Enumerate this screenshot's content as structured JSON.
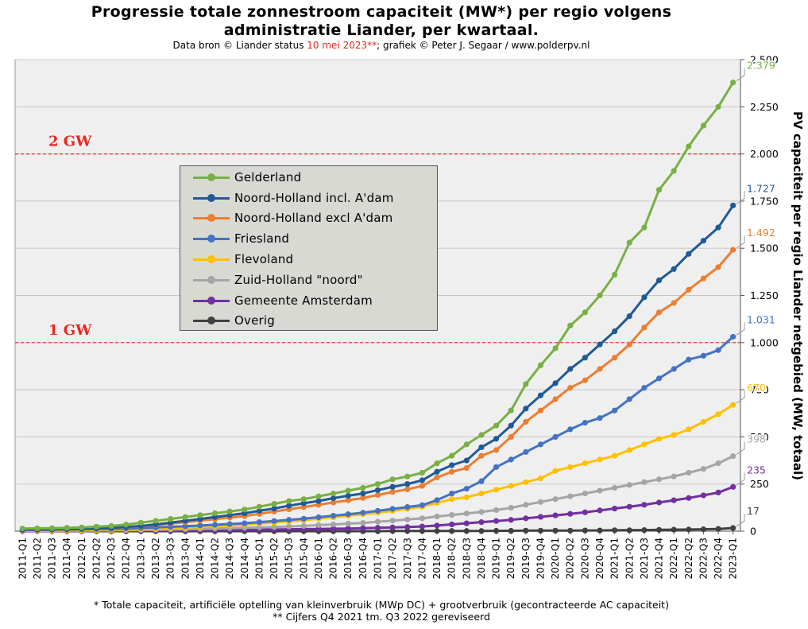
{
  "header": {
    "title_line1": "Progressie totale zonnestroom capaciteit (MW*) per regio volgens",
    "title_line2": "administratie  Liander, per kwartaal.",
    "subtitle_pre": "Data bron © Liander status ",
    "subtitle_date": "10 mei 2023**",
    "subtitle_post": "; grafiek © Peter J. Segaar / www.polderpv.nl"
  },
  "footer": {
    "note1": "* Totale capaciteit, artificiële optelling van kleinverbruik (MWp DC) + grootverbruik (gecontracteerde AC capaciteit)",
    "note2": "** Cijfers Q4 2021 tm. Q3 2022 gereviseerd"
  },
  "chart_data": {
    "type": "line",
    "ylabel": "PV capaciteit per regio Liander netgebied (MW, totaal)",
    "ylim": [
      0,
      2500
    ],
    "yticks": [
      0,
      250,
      500,
      750,
      1000,
      1250,
      1500,
      1750,
      2000,
      2250,
      2500
    ],
    "ytick_labels": [
      "0",
      "250",
      "500",
      "750",
      "1.000",
      "1.250",
      "1.500",
      "1.750",
      "2.000",
      "2.250",
      "2.500"
    ],
    "reference_lines": [
      {
        "label": "2 GW",
        "value": 2000,
        "color": "#e8261f"
      },
      {
        "label": "1 GW",
        "value": 1000,
        "color": "#e8261f"
      }
    ],
    "grid": true,
    "legend_position": "upper-left",
    "categories": [
      "2011-Q1",
      "2011-Q2",
      "2011-Q3",
      "2011-Q4",
      "2012-Q1",
      "2012-Q2",
      "2012-Q3",
      "2012-Q4",
      "2013-Q1",
      "2013-Q2",
      "2013-Q3",
      "2013-Q4",
      "2014-Q1",
      "2014-Q2",
      "2014-Q3",
      "2014-Q4",
      "2015-Q1",
      "2015-Q2",
      "2015-Q3",
      "2015-Q4",
      "2016-Q1",
      "2016-Q2",
      "2016-Q3",
      "2016-Q4",
      "2017-Q1",
      "2017-Q2",
      "2017-Q3",
      "2017-Q4",
      "2018-Q1",
      "2018-Q2",
      "2018-Q3",
      "2018-Q4",
      "2019-Q1",
      "2019-Q2",
      "2019-Q3",
      "2019-Q4",
      "2020-Q1",
      "2020-Q2",
      "2020-Q3",
      "2020-Q4",
      "2021-Q1",
      "2021-Q2",
      "2021-Q3",
      "2021-Q4",
      "2022-Q1",
      "2022-Q2",
      "2022-Q3",
      "2022-Q4",
      "2023-Q1"
    ],
    "series": [
      {
        "name": "Gelderland",
        "color": "#78b043",
        "end_label": "2.379",
        "values": [
          14,
          15,
          16,
          18,
          20,
          24,
          28,
          35,
          45,
          55,
          65,
          75,
          85,
          95,
          105,
          115,
          130,
          145,
          160,
          170,
          185,
          200,
          215,
          230,
          250,
          275,
          290,
          310,
          360,
          400,
          460,
          510,
          560,
          640,
          780,
          880,
          970,
          1090,
          1160,
          1250,
          1360,
          1530,
          1610,
          1810,
          1910,
          2040,
          2150,
          2250,
          2379
        ]
      },
      {
        "name": "Noord-Holland incl. A'dam",
        "color": "#1f5a96",
        "end_label": "1.727",
        "values": [
          7,
          8,
          9,
          10,
          12,
          15,
          18,
          22,
          28,
          36,
          45,
          55,
          65,
          75,
          85,
          95,
          108,
          120,
          135,
          148,
          160,
          175,
          188,
          200,
          218,
          235,
          250,
          270,
          315,
          350,
          375,
          445,
          490,
          560,
          650,
          720,
          785,
          860,
          920,
          990,
          1060,
          1140,
          1240,
          1330,
          1390,
          1470,
          1540,
          1610,
          1727
        ]
      },
      {
        "name": "Noord-Holland excl A'dam",
        "color": "#ed7d31",
        "end_label": "1.492",
        "values": [
          6,
          7,
          8,
          9,
          11,
          14,
          17,
          20,
          26,
          33,
          40,
          48,
          56,
          64,
          72,
          80,
          92,
          104,
          116,
          128,
          140,
          152,
          164,
          176,
          192,
          208,
          222,
          240,
          285,
          315,
          335,
          400,
          430,
          500,
          580,
          640,
          700,
          760,
          800,
          860,
          920,
          990,
          1080,
          1160,
          1210,
          1280,
          1340,
          1400,
          1492
        ]
      },
      {
        "name": "Friesland",
        "color": "#4472c4",
        "end_label": "1.031",
        "values": [
          6,
          7,
          8,
          9,
          10,
          11,
          12,
          14,
          17,
          20,
          23,
          26,
          30,
          34,
          38,
          42,
          48,
          54,
          60,
          66,
          74,
          82,
          90,
          98,
          108,
          118,
          128,
          138,
          165,
          200,
          225,
          265,
          340,
          380,
          420,
          460,
          500,
          540,
          575,
          600,
          640,
          700,
          760,
          810,
          860,
          910,
          930,
          960,
          1031
        ]
      },
      {
        "name": "Flevoland",
        "color": "#ffc000",
        "end_label": "670",
        "values": [
          3,
          3,
          4,
          4,
          5,
          6,
          7,
          8,
          10,
          12,
          15,
          18,
          22,
          26,
          30,
          34,
          40,
          46,
          52,
          58,
          66,
          74,
          82,
          90,
          98,
          108,
          118,
          130,
          150,
          170,
          180,
          200,
          220,
          240,
          260,
          280,
          320,
          340,
          360,
          380,
          400,
          430,
          460,
          490,
          510,
          540,
          580,
          620,
          670
        ]
      },
      {
        "name": "Zuid-Holland \"noord\"",
        "color": "#a5a5a5",
        "end_label": "398",
        "values": [
          2,
          2,
          2,
          3,
          3,
          4,
          5,
          6,
          7,
          8,
          9,
          10,
          12,
          14,
          16,
          18,
          20,
          22,
          25,
          28,
          32,
          36,
          40,
          44,
          50,
          56,
          62,
          68,
          78,
          86,
          94,
          102,
          112,
          124,
          140,
          155,
          170,
          185,
          200,
          215,
          230,
          245,
          260,
          275,
          290,
          310,
          330,
          360,
          398
        ]
      },
      {
        "name": "Gemeente Amsterdam",
        "color": "#7030a0",
        "end_label": "235",
        "values": [
          1,
          1,
          1,
          1,
          1,
          2,
          2,
          2,
          3,
          3,
          4,
          4,
          5,
          5,
          6,
          7,
          8,
          9,
          10,
          11,
          12,
          13,
          14,
          16,
          18,
          20,
          22,
          25,
          30,
          36,
          42,
          48,
          54,
          60,
          68,
          76,
          84,
          92,
          100,
          110,
          120,
          130,
          140,
          152,
          164,
          176,
          190,
          205,
          235
        ]
      },
      {
        "name": "Overig",
        "color": "#404040",
        "end_label": "17",
        "values": [
          0,
          0,
          0,
          0,
          0,
          0,
          0,
          0,
          0,
          0,
          0,
          0,
          0,
          0,
          0,
          0,
          0,
          0,
          0,
          0,
          0,
          0,
          0,
          0,
          0,
          1,
          1,
          1,
          1,
          1,
          1,
          1,
          2,
          2,
          3,
          3,
          3,
          3,
          4,
          4,
          5,
          5,
          6,
          7,
          8,
          9,
          10,
          12,
          17
        ]
      }
    ]
  }
}
